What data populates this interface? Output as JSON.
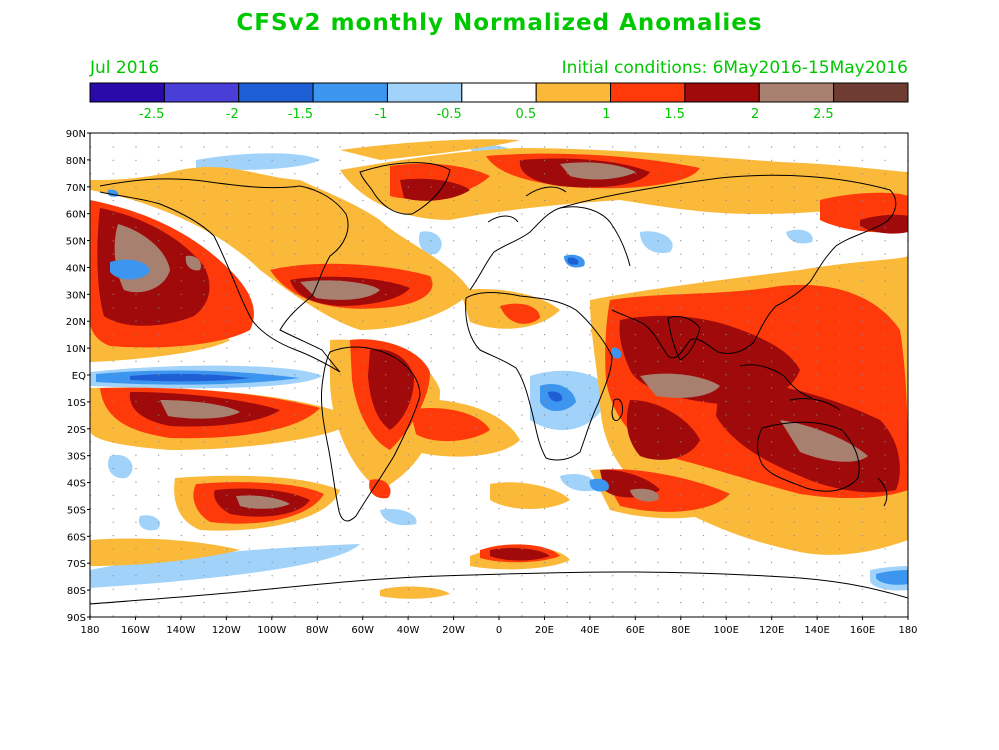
{
  "header": {
    "title": "CFSv2 monthly Normalized Anomalies",
    "month": "Jul 2016",
    "initial_conditions": "Initial conditions: 6May2016-15May2016"
  },
  "colorbar": {
    "colors": [
      "#2a0aa8",
      "#4a3ed8",
      "#1e5fd6",
      "#3c96f0",
      "#a0d2fa",
      "#ffffff",
      "#fbb93a",
      "#ff3a0a",
      "#a00a0a",
      "#a88070",
      "#6e3c32"
    ],
    "labels": [
      "-2.5",
      "-2",
      "-1.5",
      "-1",
      "-0.5",
      "0.5",
      "1",
      "1.5",
      "2",
      "2.5"
    ]
  },
  "map": {
    "lat_labels": [
      "90N",
      "80N",
      "70N",
      "60N",
      "50N",
      "40N",
      "30N",
      "20N",
      "10N",
      "EQ",
      "10S",
      "20S",
      "30S",
      "40S",
      "50S",
      "60S",
      "70S",
      "80S",
      "90S"
    ],
    "lon_labels": [
      "180",
      "160W",
      "140W",
      "120W",
      "100W",
      "80W",
      "60W",
      "40W",
      "20W",
      "0",
      "20E",
      "40E",
      "60E",
      "80E",
      "100E",
      "120E",
      "140E",
      "160E",
      "180"
    ]
  }
}
